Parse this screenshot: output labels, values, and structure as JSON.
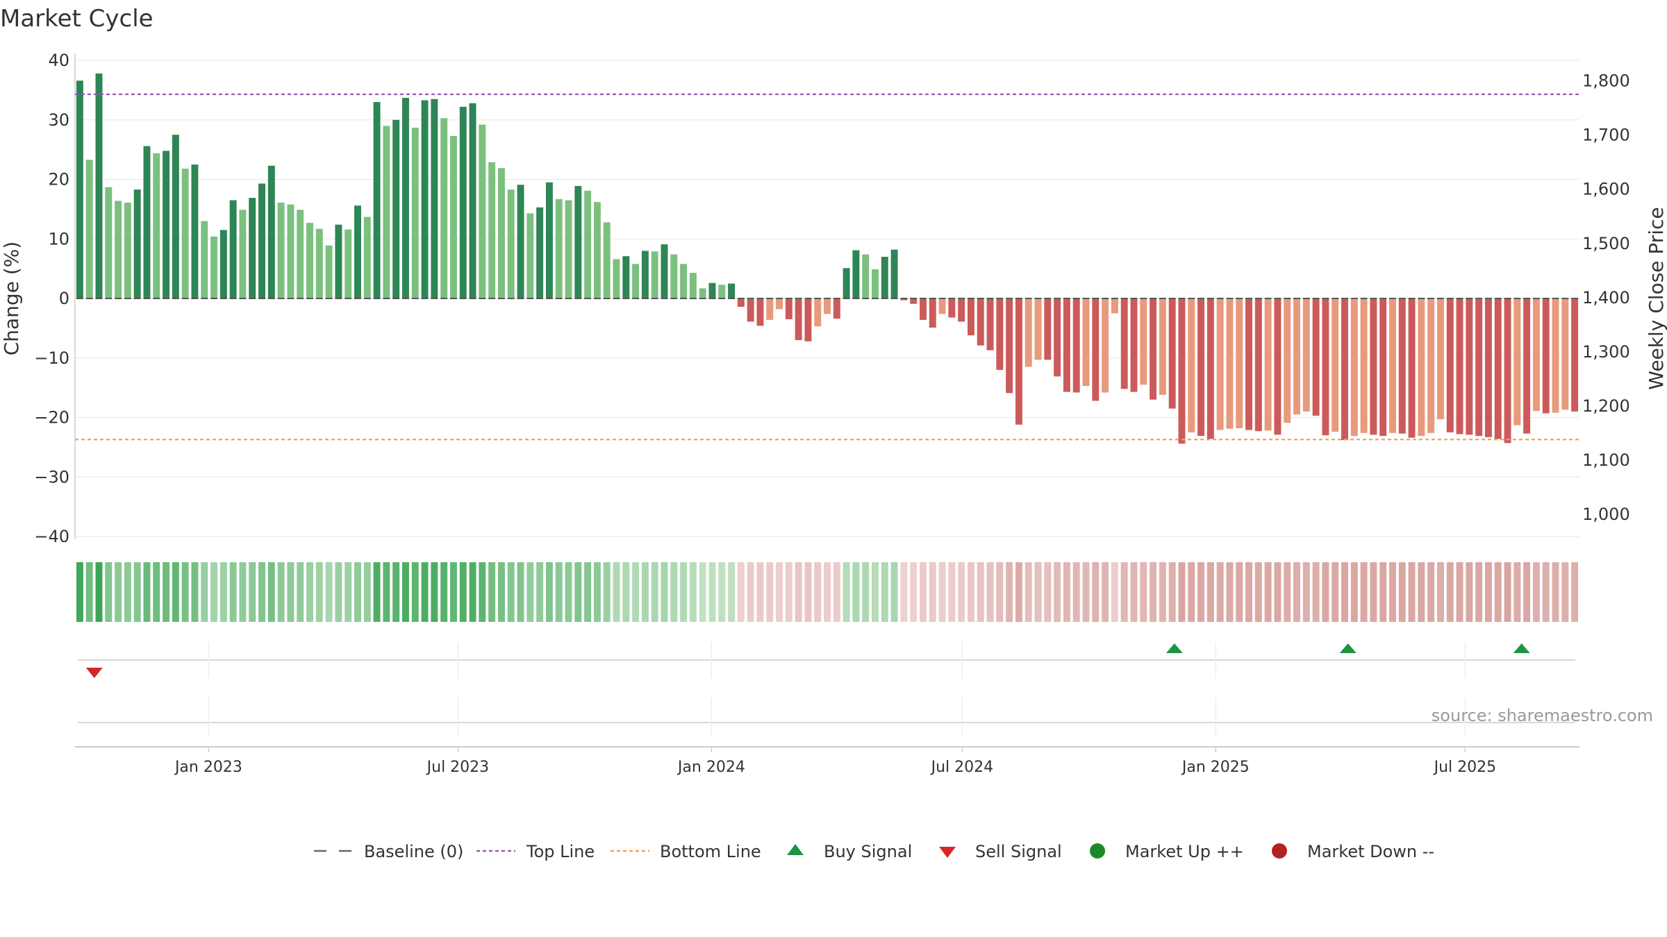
{
  "chart_data": {
    "type": "bar",
    "title": "Market Cycle",
    "ylabel_left": "Change (%)",
    "ylabel_right": "Weekly Close Price",
    "source": "source: sharemaestro.com",
    "ylim_left": [
      -40,
      40
    ],
    "yticks_left": [
      40,
      30,
      20,
      10,
      0,
      -10,
      -20,
      -30,
      -40
    ],
    "ytick_labels_left": [
      "40",
      "30",
      "20",
      "10",
      "0",
      "−10",
      "−20",
      "−30",
      "−40"
    ],
    "ylim_right": [
      959,
      1838
    ],
    "yticks_right": [
      1800,
      1700,
      1600,
      1500,
      1400,
      1300,
      1200,
      1100,
      1000
    ],
    "ytick_labels_right": [
      "1,800",
      "1,700",
      "1,600",
      "1,500",
      "1,400",
      "1,300",
      "1,200",
      "1,100",
      "1,000"
    ],
    "top_line": 34.3,
    "bottom_line": -23.7,
    "x_start": "2022-09-26",
    "x_end": "2025-09-22",
    "x_ticks": [
      {
        "date": "2023-01-01",
        "label": "Jan 2023"
      },
      {
        "date": "2023-07-01",
        "label": "Jul 2023"
      },
      {
        "date": "2024-01-01",
        "label": "Jan 2024"
      },
      {
        "date": "2024-07-01",
        "label": "Jul 2024"
      },
      {
        "date": "2025-01-01",
        "label": "Jan 2025"
      },
      {
        "date": "2025-07-01",
        "label": "Jul 2025"
      }
    ],
    "values": [
      36.6,
      23.3,
      37.8,
      18.7,
      16.4,
      16.1,
      18.3,
      25.6,
      24.4,
      24.8,
      27.5,
      21.8,
      22.5,
      13,
      10.4,
      11.5,
      16.5,
      14.9,
      16.9,
      19.3,
      22.3,
      16.1,
      15.8,
      14.9,
      12.7,
      11.7,
      8.9,
      12.4,
      11.6,
      15.6,
      13.7,
      33,
      29,
      30,
      33.7,
      28.7,
      33.3,
      33.5,
      30.3,
      27.3,
      32.2,
      32.8,
      29.2,
      22.9,
      21.9,
      18.3,
      19.1,
      14.3,
      15.3,
      19.5,
      16.7,
      16.5,
      18.9,
      18.1,
      16.2,
      12.8,
      6.6,
      7.1,
      5.8,
      8,
      7.9,
      9.1,
      7.4,
      5.8,
      4.3,
      1.7,
      2.6,
      2.3,
      2.5,
      -1.4,
      -3.9,
      -4.6,
      -3.6,
      -1.8,
      -3.5,
      -7,
      -7.2,
      -4.7,
      -2.6,
      -3.4,
      5.1,
      8.1,
      7.4,
      4.9,
      7,
      8.2,
      -0.3,
      -0.9,
      -3.6,
      -4.9,
      -2.6,
      -3.2,
      -3.9,
      -6.2,
      -7.9,
      -8.7,
      -12,
      -15.9,
      -21.2,
      -11.5,
      -10.3,
      -10.3,
      -13.1,
      -15.7,
      -15.8,
      -14.7,
      -17.2,
      -15.8,
      -2.5,
      -15.2,
      -15.7,
      -14.5,
      -17,
      -16.2,
      -18.5,
      -24.4,
      -22.5,
      -23.1,
      -23.6,
      -22.1,
      -21.9,
      -21.8,
      -22.1,
      -22.3,
      -22.2,
      -22.9,
      -20.9,
      -19.5,
      -19,
      -19.7,
      -23,
      -22.4,
      -23.8,
      -23.1,
      -22.6,
      -22.9,
      -23.1,
      -22.6,
      -22.7,
      -23.4,
      -23.1,
      -22.6,
      -20.3,
      -22.5,
      -22.8,
      -22.9,
      -23.1,
      -23.3,
      -23.6,
      -24.3,
      -21.3,
      -22.7,
      -18.9,
      -19.3,
      -19.2,
      -18.7,
      -19
    ],
    "signals": [
      {
        "type": "sell",
        "date": "2022-10-10"
      },
      {
        "type": "buy",
        "date": "2024-12-02"
      },
      {
        "type": "buy",
        "date": "2025-04-07"
      },
      {
        "type": "buy",
        "date": "2025-08-11"
      }
    ],
    "colors": {
      "up_strong": "#2e8555",
      "up_light": "#7cc07f",
      "down_strong": "#cc5a5a",
      "down_light": "#e89a7c",
      "top_line": "#9b59b6",
      "bottom_line": "#f0a060",
      "buy": "#1a9641",
      "sell": "#d62728",
      "market_up": "#1a8a2a",
      "market_down": "#b22222"
    },
    "legend": [
      {
        "key": "baseline",
        "label": "Baseline (0)"
      },
      {
        "key": "top",
        "label": "Top Line"
      },
      {
        "key": "bottom",
        "label": "Bottom Line"
      },
      {
        "key": "buy",
        "label": "Buy Signal"
      },
      {
        "key": "sell",
        "label": "Sell Signal"
      },
      {
        "key": "up",
        "label": "Market Up ++"
      },
      {
        "key": "down",
        "label": "Market Down --"
      }
    ]
  }
}
